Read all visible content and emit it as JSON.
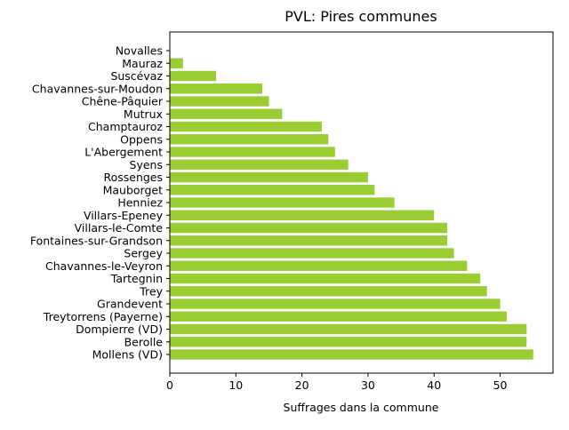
{
  "chart_data": {
    "type": "bar",
    "orientation": "horizontal",
    "title": "PVL: Pires communes",
    "xlabel": "Suffrages dans la commune",
    "ylabel": "",
    "xlim": [
      0,
      58
    ],
    "xticks": [
      0,
      10,
      20,
      30,
      40,
      50
    ],
    "grid": false,
    "bar_color": "#9acd32",
    "categories": [
      "Novalles",
      "Mauraz",
      "Suscévaz",
      "Chavannes-sur-Moudon",
      "Chêne-Pâquier",
      "Mutrux",
      "Champtauroz",
      "Oppens",
      "L'Abergement",
      "Syens",
      "Rossenges",
      "Mauborget",
      "Henniez",
      "Villars-Epeney",
      "Villars-le-Comte",
      "Fontaines-sur-Grandson",
      "Sergey",
      "Chavannes-le-Veyron",
      "Tartegnin",
      "Trey",
      "Grandevent",
      "Treytorrens (Payerne)",
      "Dompierre (VD)",
      "Berolle",
      "Mollens (VD)"
    ],
    "values": [
      0,
      2,
      7,
      14,
      15,
      17,
      23,
      24,
      25,
      27,
      30,
      31,
      34,
      40,
      42,
      42,
      43,
      45,
      47,
      48,
      50,
      51,
      54,
      54,
      55
    ]
  }
}
